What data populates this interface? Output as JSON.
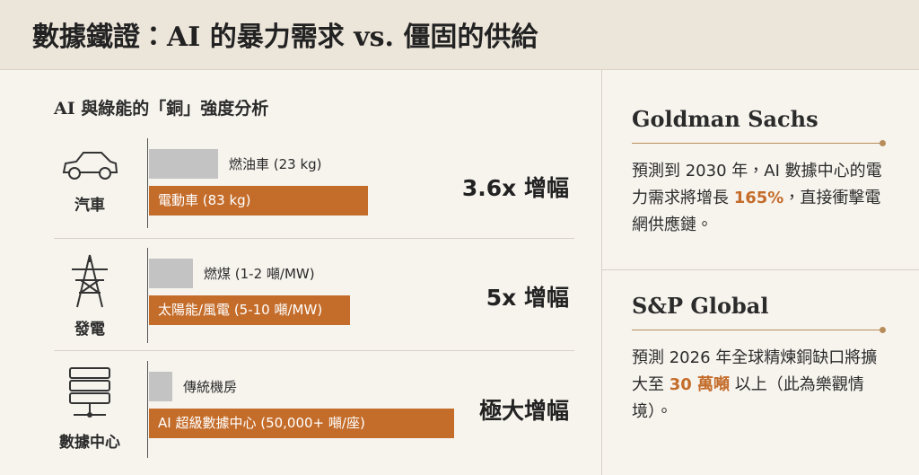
{
  "header": {
    "title": "數據鐵證：AI 的暴力需求 vs. 僵固的供給"
  },
  "left": {
    "subtitle": "AI 與綠能的「銅」強度分析",
    "rows": [
      {
        "label": "汽車",
        "bars": [
          "燃油車 (23 kg)",
          "電動車 (83 kg)"
        ],
        "growth": "3.6x 增幅"
      },
      {
        "label": "發電",
        "bars": [
          "燃煤 (1-2 噸/MW)",
          "太陽能/風電 (5-10 噸/MW)"
        ],
        "growth": "5x 增幅"
      },
      {
        "label": "數據中心",
        "bars": [
          "傳統機房",
          "AI 超級數據中心 (50,000+ 噸/座)"
        ],
        "growth": "極大增幅"
      }
    ]
  },
  "right": [
    {
      "heading": "Goldman Sachs",
      "text": [
        "預測到 2030 年，AI 數據中心的電力需求將增長 ",
        "165%",
        "，直接衝擊電網供應鏈。"
      ]
    },
    {
      "heading": "S&P Global",
      "text": [
        "預測 2026 年全球精煉銅缺口將擴大至 ",
        "30 萬噸",
        " 以上（此為樂觀情境）。"
      ]
    }
  ]
}
